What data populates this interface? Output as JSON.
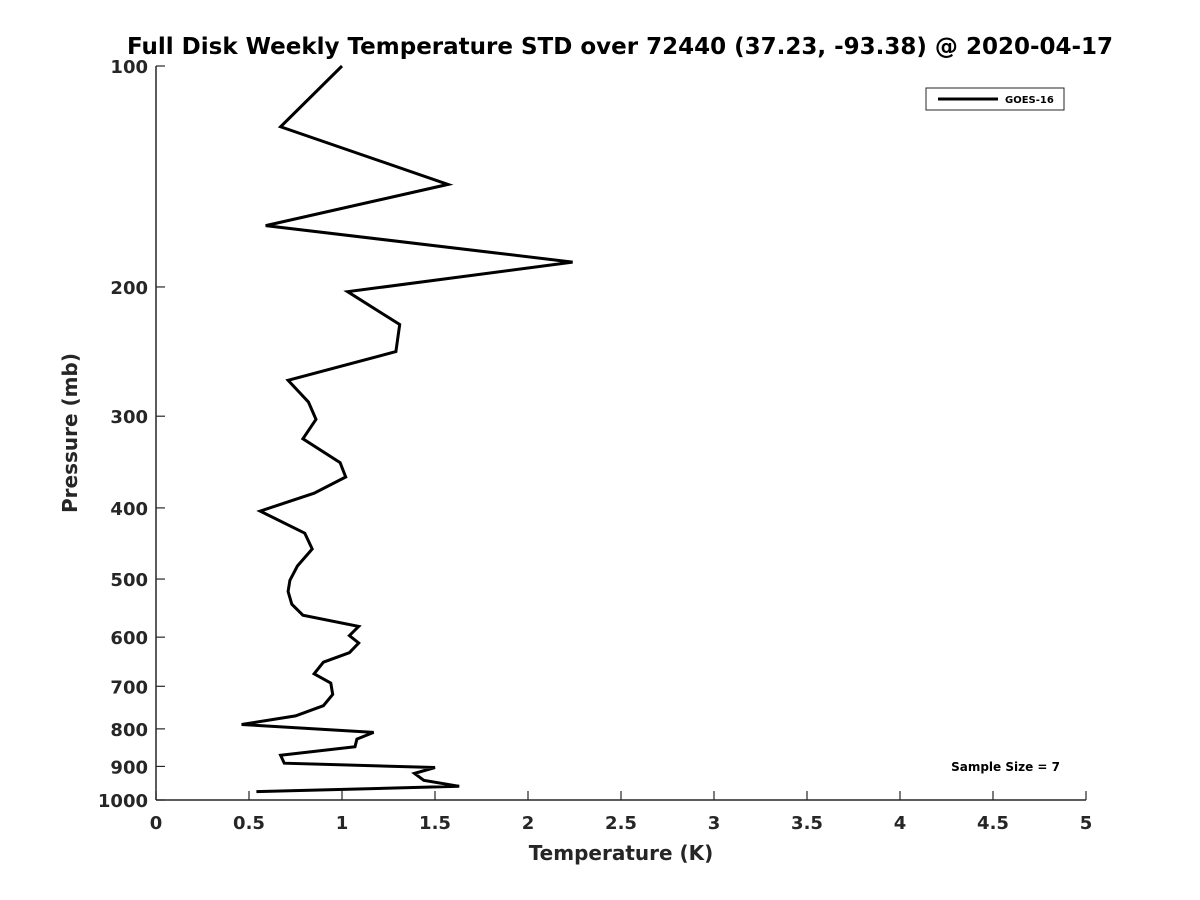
{
  "chart_data": {
    "type": "line",
    "title": "Full Disk Weekly Temperature STD over 72440 (37.23, -93.38) @ 2020-04-17",
    "xlabel": "Temperature (K)",
    "ylabel": "Pressure (mb)",
    "xlim": [
      0,
      5
    ],
    "ylim": [
      100,
      1000
    ],
    "y_scale": "log",
    "y_reversed": true,
    "x_ticks": [
      "0",
      "0.5",
      "1",
      "1.5",
      "2",
      "2.5",
      "3",
      "3.5",
      "4",
      "4.5",
      "5"
    ],
    "y_ticks": [
      "100",
      "200",
      "300",
      "400",
      "500",
      "600",
      "700",
      "800",
      "900",
      "1000"
    ],
    "grid": false,
    "legend_position": "top-right",
    "series": [
      {
        "name": "GOES-16",
        "color": "#000000",
        "x": [
          1.0,
          0.67,
          1.57,
          0.59,
          2.24,
          1.03,
          1.31,
          1.29,
          0.71,
          0.82,
          0.86,
          0.79,
          0.99,
          1.02,
          0.85,
          0.56,
          0.8,
          0.84,
          0.76,
          0.72,
          0.71,
          0.73,
          0.79,
          1.09,
          1.04,
          1.09,
          1.04,
          0.9,
          0.85,
          0.94,
          0.95,
          0.9,
          0.75,
          0.46,
          1.17,
          1.08,
          1.07,
          0.67,
          0.69,
          1.5,
          1.39,
          1.44,
          1.63,
          0.54
        ],
        "y": [
          100,
          121,
          145,
          165,
          185,
          203,
          225,
          245,
          268,
          287,
          303,
          322,
          347,
          363,
          382,
          404,
          433,
          455,
          480,
          502,
          520,
          541,
          560,
          580,
          597,
          611,
          630,
          649,
          673,
          693,
          718,
          744,
          768,
          789,
          809,
          826,
          846,
          869,
          891,
          903,
          920,
          940,
          958,
          974
        ]
      }
    ],
    "annotation": "Sample Size = 7"
  }
}
